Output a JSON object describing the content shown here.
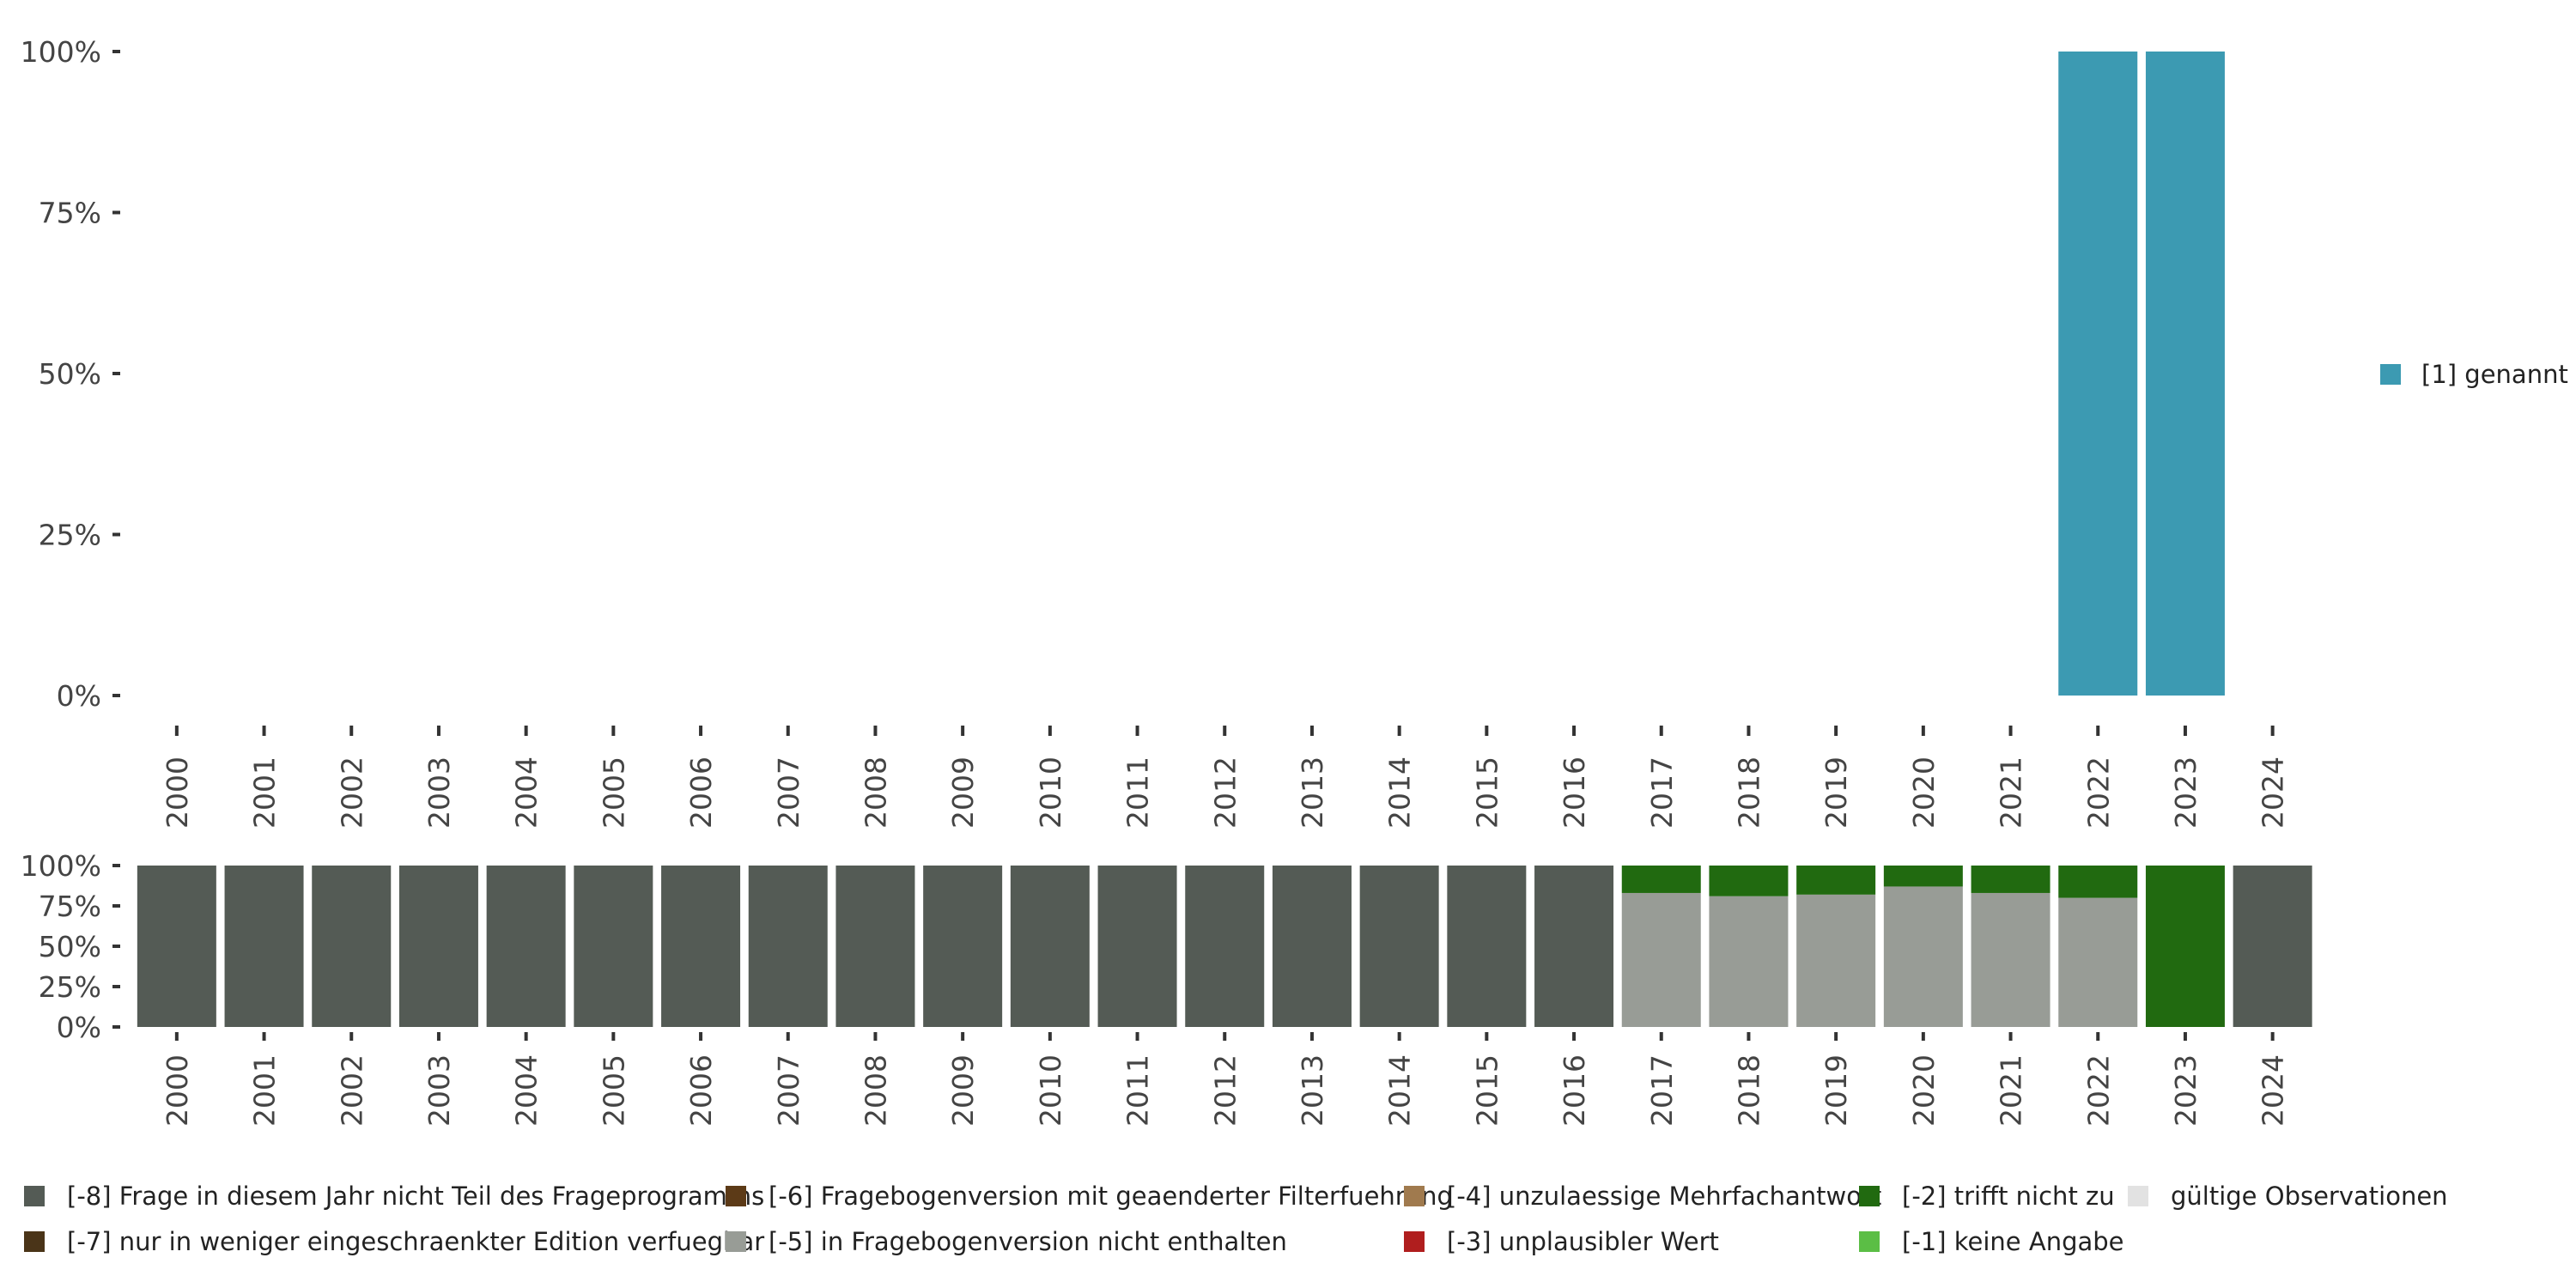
{
  "chart_data": [
    {
      "type": "bar",
      "stacked": true,
      "categories": [
        "2000",
        "2001",
        "2002",
        "2003",
        "2004",
        "2005",
        "2006",
        "2007",
        "2008",
        "2009",
        "2010",
        "2011",
        "2012",
        "2013",
        "2014",
        "2015",
        "2016",
        "2017",
        "2018",
        "2019",
        "2020",
        "2021",
        "2022",
        "2023",
        "2024"
      ],
      "series": [
        {
          "name": "[1] genannt",
          "color": "#3C9AB2",
          "values": [
            0,
            0,
            0,
            0,
            0,
            0,
            0,
            0,
            0,
            0,
            0,
            0,
            0,
            0,
            0,
            0,
            0,
            0,
            0,
            0,
            0,
            0,
            100,
            100,
            0
          ]
        }
      ],
      "yticks": [
        "0%",
        "25%",
        "50%",
        "75%",
        "100%"
      ],
      "ylim": [
        0,
        100
      ],
      "legend_position": "right",
      "grid": false
    },
    {
      "type": "bar",
      "stacked": true,
      "categories": [
        "2000",
        "2001",
        "2002",
        "2003",
        "2004",
        "2005",
        "2006",
        "2007",
        "2008",
        "2009",
        "2010",
        "2011",
        "2012",
        "2013",
        "2014",
        "2015",
        "2016",
        "2017",
        "2018",
        "2019",
        "2020",
        "2021",
        "2022",
        "2023",
        "2024"
      ],
      "series": [
        {
          "name": "[-8] Frage in diesem Jahr nicht Teil des Frageprogramms",
          "color": "#545B55",
          "values": [
            100,
            100,
            100,
            100,
            100,
            100,
            100,
            100,
            100,
            100,
            100,
            100,
            100,
            100,
            100,
            100,
            100,
            0,
            0,
            0,
            0,
            0,
            0,
            0,
            100
          ]
        },
        {
          "name": "[-7] nur in weniger eingeschraenkter Edition verfuegbar",
          "color": "#4A3418",
          "values": [
            0,
            0,
            0,
            0,
            0,
            0,
            0,
            0,
            0,
            0,
            0,
            0,
            0,
            0,
            0,
            0,
            0,
            0,
            0,
            0,
            0,
            0,
            0,
            0,
            0
          ]
        },
        {
          "name": "[-6] Fragebogenversion mit geaenderter Filterfuehrung",
          "color": "#5C3A17",
          "values": [
            0,
            0,
            0,
            0,
            0,
            0,
            0,
            0,
            0,
            0,
            0,
            0,
            0,
            0,
            0,
            0,
            0,
            0,
            0,
            0,
            0,
            0,
            0,
            0,
            0
          ]
        },
        {
          "name": "[-5] in Fragebogenversion nicht enthalten",
          "color": "#989C96",
          "values": [
            0,
            0,
            0,
            0,
            0,
            0,
            0,
            0,
            0,
            0,
            0,
            0,
            0,
            0,
            0,
            0,
            0,
            83,
            81,
            82,
            87,
            83,
            80,
            0,
            0
          ]
        },
        {
          "name": "[-4] unzulaessige Mehrfachantwort",
          "color": "#A07A4E",
          "values": [
            0,
            0,
            0,
            0,
            0,
            0,
            0,
            0,
            0,
            0,
            0,
            0,
            0,
            0,
            0,
            0,
            0,
            0,
            0,
            0,
            0,
            0,
            0,
            0,
            0
          ]
        },
        {
          "name": "[-3] unplausibler Wert",
          "color": "#B01E1E",
          "values": [
            0,
            0,
            0,
            0,
            0,
            0,
            0,
            0,
            0,
            0,
            0,
            0,
            0,
            0,
            0,
            0,
            0,
            0,
            0,
            0,
            0,
            0,
            0,
            0,
            0
          ]
        },
        {
          "name": "[-2] trifft nicht zu",
          "color": "#216A10",
          "values": [
            0,
            0,
            0,
            0,
            0,
            0,
            0,
            0,
            0,
            0,
            0,
            0,
            0,
            0,
            0,
            0,
            0,
            17,
            19,
            18,
            13,
            17,
            20,
            100,
            0
          ]
        },
        {
          "name": "[-1] keine Angabe",
          "color": "#5BBE45",
          "values": [
            0,
            0,
            0,
            0,
            0,
            0,
            0,
            0,
            0,
            0,
            0,
            0,
            0,
            0,
            0,
            0,
            0,
            0,
            0,
            0,
            0,
            0,
            0,
            0,
            0
          ]
        },
        {
          "name": "gültige Observationen",
          "color": "#E2E2E2",
          "values": [
            0,
            0,
            0,
            0,
            0,
            0,
            0,
            0,
            0,
            0,
            0,
            0,
            0,
            0,
            0,
            0,
            0,
            0,
            0,
            0,
            0,
            0,
            0,
            0,
            0
          ]
        }
      ],
      "yticks": [
        "0%",
        "25%",
        "50%",
        "75%",
        "100%"
      ],
      "ylim": [
        0,
        100
      ],
      "legend_position": "bottom",
      "grid": false
    }
  ]
}
